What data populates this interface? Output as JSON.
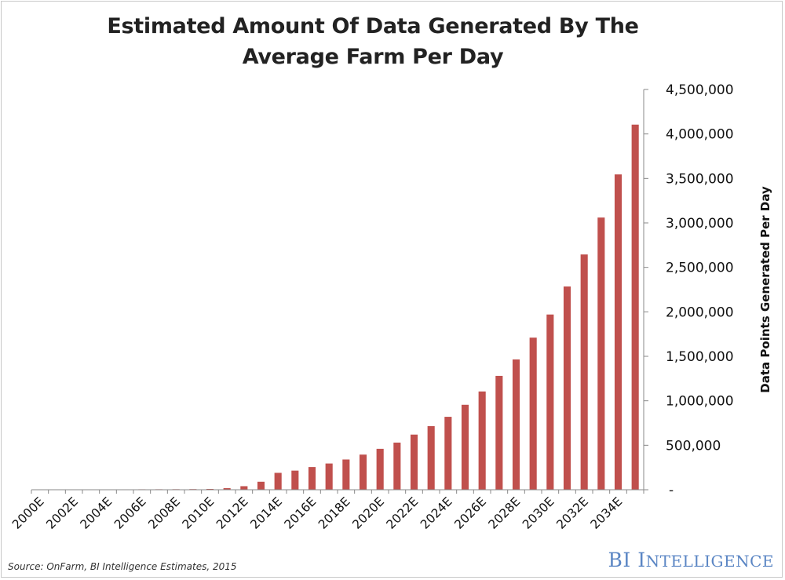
{
  "title_line1": "Estimated Amount Of Data Generated By The",
  "title_line2": "Average Farm Per Day",
  "source": "Source: OnFarm, BI Intelligence Estimates, 2015",
  "brand": {
    "initials": "BI",
    "name": "Intelligence"
  },
  "colors": {
    "bar": "#c0504d",
    "axis": "#888888"
  },
  "chart_data": {
    "type": "bar",
    "title": "Estimated Amount Of Data Generated By The Average Farm Per Day",
    "ylabel": "Data Points Generated Per Day",
    "xlabel": "",
    "ylim": [
      0,
      4500000
    ],
    "y_axis_position": "right",
    "grid": false,
    "y_ticks": [
      0,
      500000,
      1000000,
      1500000,
      2000000,
      2500000,
      3000000,
      3500000,
      4000000,
      4500000
    ],
    "y_tick_labels": [
      "-",
      "500,000",
      "1,000,000",
      "1,500,000",
      "2,000,000",
      "2,500,000",
      "3,000,000",
      "3,500,000",
      "4,000,000",
      "4,500,000"
    ],
    "categories": [
      "2000E",
      "2001E",
      "2002E",
      "2003E",
      "2004E",
      "2005E",
      "2006E",
      "2007E",
      "2008E",
      "2009E",
      "2010E",
      "2011E",
      "2012E",
      "2013E",
      "2014E",
      "2015E",
      "2016E",
      "2017E",
      "2018E",
      "2019E",
      "2020E",
      "2021E",
      "2022E",
      "2023E",
      "2024E",
      "2025E",
      "2026E",
      "2027E",
      "2028E",
      "2029E",
      "2030E",
      "2031E",
      "2032E",
      "2033E",
      "2034E",
      "2035E"
    ],
    "x_tick_labels_shown": [
      "2000E",
      "2002E",
      "2004E",
      "2006E",
      "2008E",
      "2010E",
      "2012E",
      "2014E",
      "2016E",
      "2018E",
      "2020E",
      "2022E",
      "2024E",
      "2026E",
      "2028E",
      "2030E",
      "2032E",
      "2034E"
    ],
    "series": [
      {
        "values": [
          2000,
          2500,
          3000,
          3500,
          4000,
          4500,
          5000,
          5500,
          6000,
          7000,
          9000,
          18000,
          40000,
          90000,
          190000,
          215000,
          255000,
          295000,
          340000,
          395000,
          460000,
          530000,
          620000,
          715000,
          820000,
          955000,
          1105000,
          1280000,
          1465000,
          1710000,
          1970000,
          2285000,
          2645000,
          3060000,
          3545000,
          4105000
        ]
      }
    ]
  }
}
